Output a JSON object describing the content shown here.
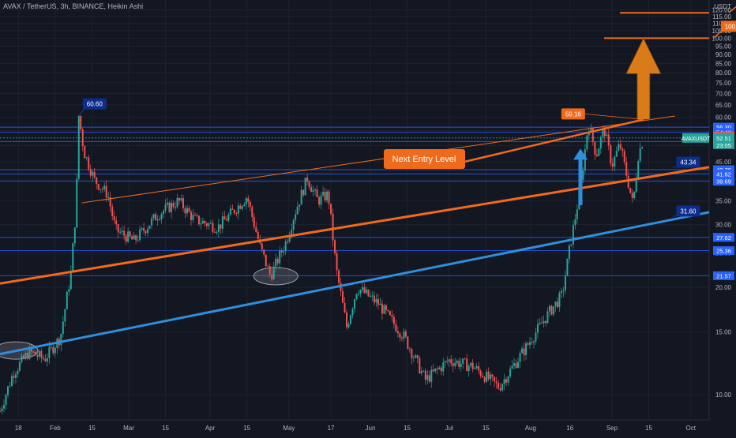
{
  "title": "AVAX / TetherUS, 3h, BINANCE, Heikin Ashi",
  "colors": {
    "background": "#131722",
    "axis_text": "#b2b5be",
    "grid": "#1e2230",
    "up": "#26a69a",
    "down": "#ef5350",
    "orange": "#f06a1c",
    "blue_line": "#2f8fdd",
    "level_line": "#2962ff",
    "level_badge": "#2962ff",
    "annotation_dark_blue": "#0d2d8c"
  },
  "chart_data": {
    "type": "candlestick",
    "symbol": "AVAX / TetherUS",
    "interval": "3h",
    "exchange": "BINANCE",
    "style": "Heikin Ashi",
    "currency_label": "USDT",
    "log_scale": true,
    "ylim": [
      8.5,
      128
    ],
    "y_ticks": [
      10,
      15,
      20,
      25,
      30,
      35,
      40,
      45,
      50,
      55,
      60,
      65,
      70,
      75,
      80,
      85,
      90,
      95,
      100,
      105,
      110,
      115,
      120
    ],
    "y_tick_labels": [
      "10.00",
      "15.00",
      "20.00",
      "25.00",
      "30.00",
      "35.00",
      "40.00",
      "45.00",
      "50.00",
      "55.00",
      "60.00",
      "65.00",
      "70.00",
      "75.00",
      "80.00",
      "85.00",
      "90.00",
      "95.00",
      "100.00",
      "105.00",
      "110.00",
      "115.00",
      "120.00"
    ],
    "x_range": [
      "2021-01-11",
      "2021-10-08"
    ],
    "x_ticks": [
      {
        "date": "2021-01-18",
        "label": "18"
      },
      {
        "date": "2021-02-01",
        "label": "Feb"
      },
      {
        "date": "2021-02-15",
        "label": "15"
      },
      {
        "date": "2021-03-01",
        "label": "Mar"
      },
      {
        "date": "2021-03-15",
        "label": "15"
      },
      {
        "date": "2021-04-01",
        "label": "Apr"
      },
      {
        "date": "2021-04-15",
        "label": "15"
      },
      {
        "date": "2021-05-01",
        "label": "May"
      },
      {
        "date": "2021-05-17",
        "label": "17"
      },
      {
        "date": "2021-06-01",
        "label": "Jun"
      },
      {
        "date": "2021-06-15",
        "label": "15"
      },
      {
        "date": "2021-07-01",
        "label": "Jul"
      },
      {
        "date": "2021-07-15",
        "label": "15"
      },
      {
        "date": "2021-08-01",
        "label": "Aug"
      },
      {
        "date": "2021-08-16",
        "label": "16"
      },
      {
        "date": "2021-09-01",
        "label": "Sep"
      },
      {
        "date": "2021-09-15",
        "label": "15"
      },
      {
        "date": "2021-10-01",
        "label": "Oct"
      }
    ],
    "price_path": [
      {
        "date": "2021-01-11",
        "price": 9.0
      },
      {
        "date": "2021-01-16",
        "price": 11.5
      },
      {
        "date": "2021-01-22",
        "price": 13.2
      },
      {
        "date": "2021-01-28",
        "price": 12.6
      },
      {
        "date": "2021-02-03",
        "price": 14.5
      },
      {
        "date": "2021-02-07",
        "price": 22.0
      },
      {
        "date": "2021-02-09",
        "price": 34.0
      },
      {
        "date": "2021-02-10",
        "price": 60.6
      },
      {
        "date": "2021-02-12",
        "price": 48.0
      },
      {
        "date": "2021-02-16",
        "price": 40.0
      },
      {
        "date": "2021-02-21",
        "price": 36.5
      },
      {
        "date": "2021-02-24",
        "price": 29.0
      },
      {
        "date": "2021-03-03",
        "price": 27.0
      },
      {
        "date": "2021-03-12",
        "price": 32.0
      },
      {
        "date": "2021-03-20",
        "price": 35.0
      },
      {
        "date": "2021-03-26",
        "price": 31.0
      },
      {
        "date": "2021-04-04",
        "price": 29.5
      },
      {
        "date": "2021-04-12",
        "price": 34.0
      },
      {
        "date": "2021-04-15",
        "price": 36.0
      },
      {
        "date": "2021-04-20",
        "price": 26.0
      },
      {
        "date": "2021-04-24",
        "price": 21.5
      },
      {
        "date": "2021-04-30",
        "price": 27.0
      },
      {
        "date": "2021-05-03",
        "price": 32.0
      },
      {
        "date": "2021-05-08",
        "price": 40.5
      },
      {
        "date": "2021-05-12",
        "price": 35.0
      },
      {
        "date": "2021-05-16",
        "price": 36.5
      },
      {
        "date": "2021-05-19",
        "price": 22.5
      },
      {
        "date": "2021-05-23",
        "price": 15.5
      },
      {
        "date": "2021-05-27",
        "price": 20.0
      },
      {
        "date": "2021-06-04",
        "price": 18.0
      },
      {
        "date": "2021-06-14",
        "price": 14.5
      },
      {
        "date": "2021-06-22",
        "price": 11.0
      },
      {
        "date": "2021-07-01",
        "price": 12.5
      },
      {
        "date": "2021-07-10",
        "price": 12.0
      },
      {
        "date": "2021-07-20",
        "price": 10.5
      },
      {
        "date": "2021-07-30",
        "price": 13.5
      },
      {
        "date": "2021-08-08",
        "price": 17.0
      },
      {
        "date": "2021-08-13",
        "price": 19.0
      },
      {
        "date": "2021-08-16",
        "price": 26.0
      },
      {
        "date": "2021-08-20",
        "price": 38.0
      },
      {
        "date": "2021-08-23",
        "price": 58.0
      },
      {
        "date": "2021-08-26",
        "price": 47.0
      },
      {
        "date": "2021-08-29",
        "price": 56.0
      },
      {
        "date": "2021-09-01",
        "price": 44.0
      },
      {
        "date": "2021-09-04",
        "price": 50.5
      },
      {
        "date": "2021-09-07",
        "price": 40.0
      },
      {
        "date": "2021-09-09",
        "price": 34.0
      },
      {
        "date": "2021-09-11",
        "price": 47.0
      },
      {
        "date": "2021-09-13",
        "price": 52.51
      }
    ],
    "horizontal_levels": [
      {
        "price": 56.3,
        "color": "#2962ff"
      },
      {
        "price": 54.46,
        "color": "#2962ff"
      },
      {
        "price": 51.3,
        "color": "#2962ff"
      },
      {
        "price": 42.78,
        "color": "#2962ff"
      },
      {
        "price": 41.62,
        "color": "#2962ff"
      },
      {
        "price": 39.69,
        "color": "#2962ff"
      },
      {
        "price": 27.62,
        "color": "#2962ff"
      },
      {
        "price": 25.36,
        "color": "#2962ff"
      },
      {
        "price": 21.57,
        "color": "#2962ff"
      }
    ],
    "price_scale_labels": [
      {
        "price": 56.3,
        "text": "56.30",
        "bg": "#2962ff"
      },
      {
        "price": 54.46,
        "text": "54.46",
        "bg": "#2962ff"
      },
      {
        "price": 53.2,
        "text": "54.18",
        "bg": "#ef5350"
      },
      {
        "price": 42.78,
        "text": "42.78",
        "bg": "#2962ff"
      },
      {
        "price": 41.62,
        "text": "41.62",
        "bg": "#2962ff"
      },
      {
        "price": 39.69,
        "text": "39.69",
        "bg": "#2962ff"
      },
      {
        "price": 27.62,
        "text": "27.62",
        "bg": "#2962ff"
      },
      {
        "price": 25.36,
        "text": "25.36",
        "bg": "#2962ff"
      },
      {
        "price": 21.57,
        "text": "21.57",
        "bg": "#2962ff"
      }
    ],
    "current_price": {
      "price": 52.51,
      "symbol_label": "AVAXUSDT",
      "text": "52.51",
      "countdown": "23:05",
      "bg": "#26a69a"
    },
    "trend_lines": [
      {
        "name": "orange-support",
        "color": "#f06a1c",
        "width": 3,
        "from": {
          "date": "2021-01-11",
          "price": 20.5
        },
        "to": {
          "date": "2021-10-08",
          "price": 43.5
        }
      },
      {
        "name": "blue-support",
        "color": "#2f8fdd",
        "width": 3,
        "from": {
          "date": "2021-01-11",
          "price": 13.0
        },
        "to": {
          "date": "2021-10-08",
          "price": 32.5
        }
      },
      {
        "name": "thin-resistance",
        "color": "#f06a1c",
        "width": 1,
        "from": {
          "date": "2021-02-11",
          "price": 34.5
        },
        "to": {
          "date": "2021-09-25",
          "price": 60.5
        }
      }
    ],
    "target_lines": [
      {
        "price": 117.85,
        "from": "2021-09-04",
        "to": "2021-10-08",
        "label": "117.85"
      },
      {
        "price": 100.0,
        "from": "2021-08-29",
        "to": "2021-10-08",
        "label": "100.00"
      }
    ],
    "annotations": [
      {
        "text": "60.60",
        "style": "dark-blue-callout",
        "anchor": {
          "date": "2021-02-10",
          "price": 60.6
        }
      },
      {
        "text": "59.16",
        "style": "orange-callout",
        "anchor": {
          "date": "2021-09-13",
          "price": 59.16
        }
      },
      {
        "text": "43.34",
        "style": "dark-blue-callout",
        "anchor": {
          "date": "2021-09-24",
          "price": 43.34
        }
      },
      {
        "text": "31.60",
        "style": "dark-blue-callout",
        "anchor": {
          "date": "2021-09-24",
          "price": 31.6
        }
      },
      {
        "text": "Next Entry Level",
        "style": "orange-text-box",
        "anchor": {
          "date": "2021-09-13",
          "price": 59.16
        }
      }
    ],
    "arrows": [
      {
        "color": "#d97b18",
        "from": {
          "date": "2021-09-13",
          "price": 59.16
        },
        "to": {
          "date": "2021-09-13",
          "price": 100.0
        }
      },
      {
        "color": "#2f8fdd",
        "from": {
          "date": "2021-08-20",
          "price": 34.0
        },
        "to": {
          "date": "2021-08-20",
          "price": 49.0
        }
      }
    ],
    "highlight_ellipses": [
      {
        "date": "2021-01-17",
        "price": 13.3
      },
      {
        "date": "2021-04-26",
        "price": 21.5
      }
    ],
    "grid": true
  }
}
